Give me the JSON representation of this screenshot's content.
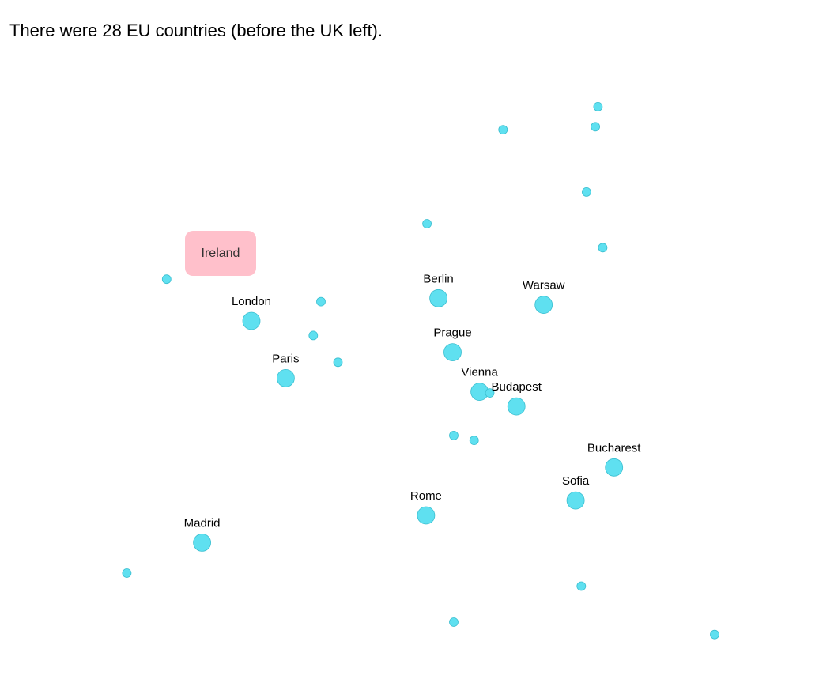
{
  "header": {
    "title": "There were 28 EU countries (before the UK left)."
  },
  "colors": {
    "marker_fill": "#5fe0f0",
    "marker_stroke": "#3bbfd0",
    "tooltip_bg": "#ffc0cb"
  },
  "tooltip": {
    "label": "Ireland"
  },
  "capitals": [
    {
      "id": "ireland",
      "label": "",
      "size": "small",
      "lon": -6.26,
      "lat": 53.35
    },
    {
      "id": "uk",
      "label": "London",
      "size": "large",
      "lon": -0.13,
      "lat": 51.51
    },
    {
      "id": "france",
      "label": "Paris",
      "size": "large",
      "lon": 2.35,
      "lat": 48.86
    },
    {
      "id": "netherlands",
      "label": "",
      "size": "small",
      "lon": 4.9,
      "lat": 52.37
    },
    {
      "id": "belgium",
      "label": "",
      "size": "small",
      "lon": 4.35,
      "lat": 50.85
    },
    {
      "id": "luxembourg",
      "label": "",
      "size": "small",
      "lon": 6.13,
      "lat": 49.61
    },
    {
      "id": "denmark",
      "label": "",
      "size": "small",
      "lon": 12.57,
      "lat": 55.68
    },
    {
      "id": "germany",
      "label": "Berlin",
      "size": "large",
      "lon": 13.4,
      "lat": 52.52
    },
    {
      "id": "czechia",
      "label": "Prague",
      "size": "large",
      "lon": 14.42,
      "lat": 50.08
    },
    {
      "id": "austria",
      "label": "Vienna",
      "size": "large",
      "lon": 16.37,
      "lat": 48.21
    },
    {
      "id": "slovakia",
      "label": "",
      "size": "small",
      "lon": 17.11,
      "lat": 48.15
    },
    {
      "id": "hungary",
      "label": "Budapest",
      "size": "large",
      "lon": 19.04,
      "lat": 47.5
    },
    {
      "id": "poland",
      "label": "Warsaw",
      "size": "large",
      "lon": 21.01,
      "lat": 52.23
    },
    {
      "id": "sweden",
      "label": "",
      "size": "small",
      "lon": 18.07,
      "lat": 59.33
    },
    {
      "id": "finland",
      "label": "",
      "size": "small",
      "lon": 24.94,
      "lat": 60.17
    },
    {
      "id": "estonia",
      "label": "",
      "size": "small",
      "lon": 24.75,
      "lat": 59.44
    },
    {
      "id": "latvia",
      "label": "",
      "size": "small",
      "lon": 24.11,
      "lat": 56.95
    },
    {
      "id": "lithuania",
      "label": "",
      "size": "small",
      "lon": 25.28,
      "lat": 54.69
    },
    {
      "id": "slovenia",
      "label": "",
      "size": "small",
      "lon": 14.51,
      "lat": 46.06
    },
    {
      "id": "croatia",
      "label": "",
      "size": "small",
      "lon": 15.98,
      "lat": 45.81
    },
    {
      "id": "romania",
      "label": "Bucharest",
      "size": "large",
      "lon": 26.1,
      "lat": 44.43
    },
    {
      "id": "bulgaria",
      "label": "Sofia",
      "size": "large",
      "lon": 23.32,
      "lat": 42.7
    },
    {
      "id": "italy",
      "label": "Rome",
      "size": "large",
      "lon": 12.5,
      "lat": 41.9
    },
    {
      "id": "spain",
      "label": "Madrid",
      "size": "large",
      "lon": -3.7,
      "lat": 40.42
    },
    {
      "id": "portugal",
      "label": "",
      "size": "small",
      "lon": -9.14,
      "lat": 38.72
    },
    {
      "id": "greece",
      "label": "",
      "size": "small",
      "lon": 23.73,
      "lat": 37.98
    },
    {
      "id": "malta",
      "label": "",
      "size": "small",
      "lon": 14.51,
      "lat": 35.9
    },
    {
      "id": "cyprus",
      "label": "",
      "size": "small",
      "lon": 33.38,
      "lat": 35.17
    }
  ]
}
